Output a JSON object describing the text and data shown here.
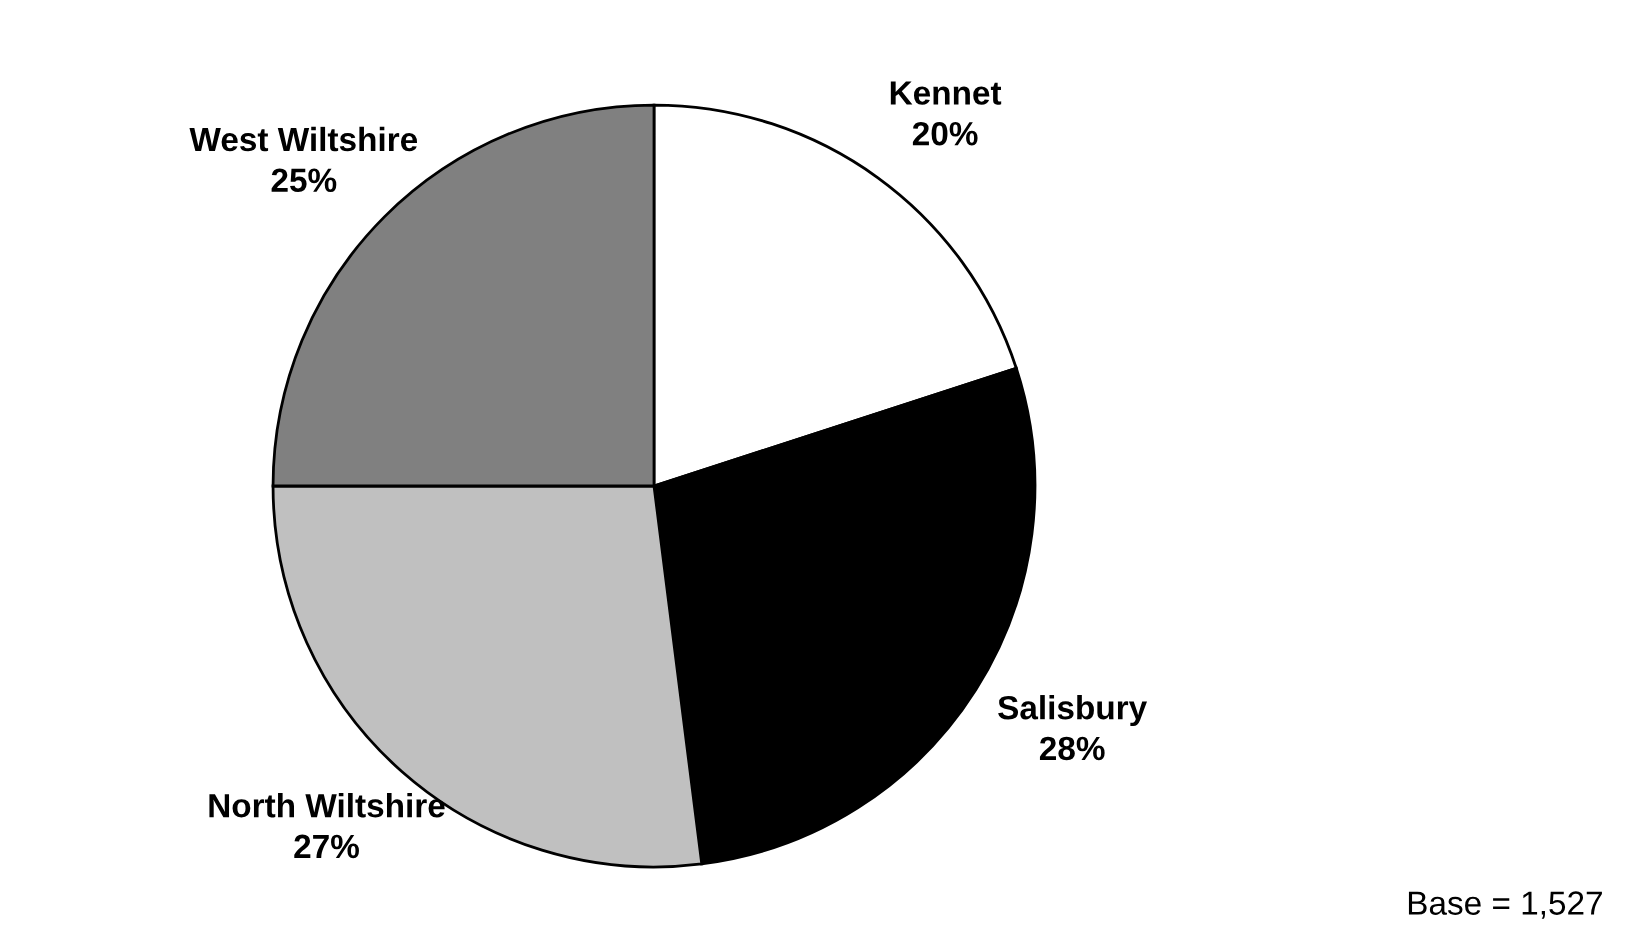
{
  "chart_data": {
    "type": "pie",
    "categories": [
      "Kennet",
      "Salisbury",
      "North Wiltshire",
      "West Wiltshire"
    ],
    "values": [
      20,
      28,
      27,
      25
    ],
    "value_labels": [
      "20%",
      "28%",
      "27%",
      "25%"
    ],
    "colors": [
      "#ffffff",
      "#000000",
      "#c0c0c0",
      "#808080"
    ],
    "annotations": [
      "Base = 1,527"
    ]
  }
}
